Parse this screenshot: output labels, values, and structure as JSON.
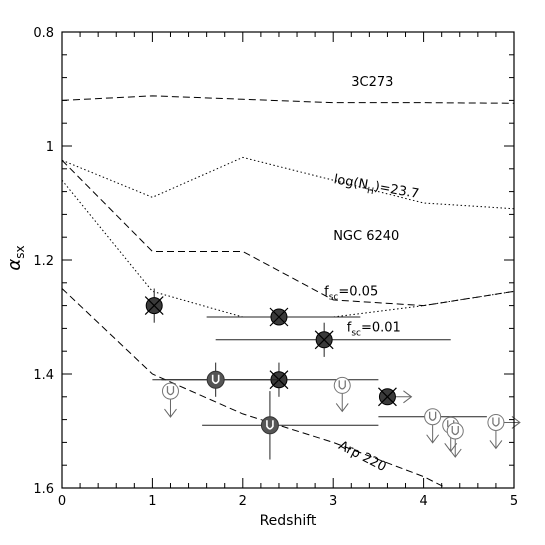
{
  "chart_data": {
    "type": "line",
    "title": "",
    "xlabel": "Redshift",
    "ylabel": "α",
    "ylabel_sub": "sx",
    "xlim": [
      0,
      5
    ],
    "ylim": [
      0.8,
      1.6
    ],
    "y_inverted": true,
    "grid": false,
    "x_ticks": [
      {
        "value": 0,
        "label": "0"
      },
      {
        "value": 1,
        "label": "1"
      },
      {
        "value": 2,
        "label": "2"
      },
      {
        "value": 3,
        "label": "3"
      },
      {
        "value": 4,
        "label": "4"
      },
      {
        "value": 5,
        "label": "5"
      }
    ],
    "y_ticks": [
      {
        "value": 0.8,
        "label": "0.8"
      },
      {
        "value": 1.0,
        "label": "1"
      },
      {
        "value": 1.2,
        "label": "1.2"
      },
      {
        "value": 1.4,
        "label": "1.4"
      },
      {
        "value": 1.6,
        "label": "1.6"
      }
    ],
    "curves": [
      {
        "key": "3c273",
        "style": "dashed",
        "x": [
          0,
          1,
          2,
          3,
          4,
          5
        ],
        "y": [
          0.92,
          0.912,
          0.918,
          0.924,
          0.924,
          0.925
        ]
      },
      {
        "key": "nh",
        "style": "dotted",
        "x": [
          0,
          1,
          2,
          3,
          4,
          5
        ],
        "y": [
          1.025,
          1.09,
          1.02,
          1.06,
          1.1,
          1.11
        ]
      },
      {
        "key": "ngc6240",
        "style": "dashed",
        "x": [
          0,
          1,
          2,
          3,
          4,
          5
        ],
        "y": [
          1.025,
          1.185,
          1.185,
          1.27,
          1.28,
          1.255
        ]
      },
      {
        "key": "fsc005",
        "style": "dotted",
        "x": [
          0,
          1,
          2,
          3,
          4,
          5
        ],
        "y": [
          1.06,
          1.255,
          1.3,
          1.3,
          1.28,
          1.255
        ]
      },
      {
        "key": "arp220",
        "style": "dashed",
        "x": [
          0,
          1,
          2,
          3,
          4,
          4.5
        ],
        "y": [
          1.25,
          1.4,
          1.47,
          1.52,
          1.58,
          1.62
        ]
      }
    ],
    "curve_labels": [
      {
        "key": "3c273",
        "text": "3C273",
        "x": 3.2,
        "y": 0.895,
        "rotate": 0
      },
      {
        "key": "nh",
        "text": "log(N",
        "sub": "H",
        "tail": ")=23.7",
        "x": 3.0,
        "y": 1.065,
        "rotate": 10
      },
      {
        "key": "ngc6240",
        "text": "NGC 6240",
        "x": 3.0,
        "y": 1.165,
        "rotate": 0
      },
      {
        "key": "fsc005",
        "text": "f",
        "sub": "sc",
        "tail": "=0.05",
        "x": 2.9,
        "y": 1.262,
        "rotate": 0
      },
      {
        "key": "fsc001",
        "text": "f",
        "sub": "sc",
        "tail": "=0.01",
        "x": 3.15,
        "y": 1.325,
        "rotate": 0
      },
      {
        "key": "arp220",
        "text": "Arp 220",
        "x": 3.05,
        "y": 1.53,
        "rotate": 27
      }
    ],
    "points": [
      {
        "marker": "x-circle",
        "x": 1.02,
        "y": 1.28,
        "xerr": [
          0,
          0
        ],
        "yerr": [
          0.03,
          0.03
        ],
        "upper_limit": false,
        "right_arrow": false
      },
      {
        "marker": "x-circle",
        "x": 2.4,
        "y": 1.3,
        "xerr": [
          0.8,
          0.9
        ],
        "yerr": [
          0.0,
          0.0
        ],
        "upper_limit": false,
        "right_arrow": false
      },
      {
        "marker": "x-circle",
        "x": 2.9,
        "y": 1.34,
        "xerr": [
          1.2,
          1.4
        ],
        "yerr": [
          0.03,
          0.03
        ],
        "upper_limit": false,
        "right_arrow": false
      },
      {
        "marker": "x-circle",
        "x": 2.4,
        "y": 1.41,
        "xerr": [
          1.3,
          1.1
        ],
        "yerr": [
          0.03,
          0.03
        ],
        "upper_limit": false,
        "right_arrow": false
      },
      {
        "marker": "x-circle",
        "x": 3.6,
        "y": 1.44,
        "xerr": [
          0,
          0
        ],
        "yerr": [
          0.0,
          0.0
        ],
        "upper_limit": false,
        "right_arrow": true
      },
      {
        "marker": "u-filled",
        "x": 1.7,
        "y": 1.41,
        "xerr": [
          0.7,
          0.7
        ],
        "yerr": [
          0.03,
          0.03
        ],
        "upper_limit": false,
        "right_arrow": false
      },
      {
        "marker": "u-filled",
        "x": 2.3,
        "y": 1.49,
        "xerr": [
          0.75,
          1.2
        ],
        "yerr": [
          0.06,
          0.06
        ],
        "upper_limit": false,
        "right_arrow": false
      },
      {
        "marker": "u-open",
        "x": 1.2,
        "y": 1.43,
        "xerr": [
          0,
          0
        ],
        "yerr": [
          0,
          0
        ],
        "upper_limit": true,
        "right_arrow": false
      },
      {
        "marker": "u-open",
        "x": 3.1,
        "y": 1.42,
        "xerr": [
          0,
          0
        ],
        "yerr": [
          0,
          0
        ],
        "upper_limit": true,
        "right_arrow": false
      },
      {
        "marker": "u-open",
        "x": 4.1,
        "y": 1.475,
        "xerr": [
          0.6,
          0.6
        ],
        "yerr": [
          0,
          0
        ],
        "upper_limit": true,
        "right_arrow": false
      },
      {
        "marker": "u-open",
        "x": 4.3,
        "y": 1.49,
        "xerr": [
          0,
          0
        ],
        "yerr": [
          0,
          0
        ],
        "upper_limit": true,
        "right_arrow": false
      },
      {
        "marker": "u-open",
        "x": 4.35,
        "y": 1.5,
        "xerr": [
          0,
          0
        ],
        "yerr": [
          0,
          0
        ],
        "upper_limit": true,
        "right_arrow": false
      },
      {
        "marker": "u-open",
        "x": 4.8,
        "y": 1.485,
        "xerr": [
          0,
          0
        ],
        "yerr": [
          0,
          0
        ],
        "upper_limit": true,
        "right_arrow": true
      }
    ]
  }
}
